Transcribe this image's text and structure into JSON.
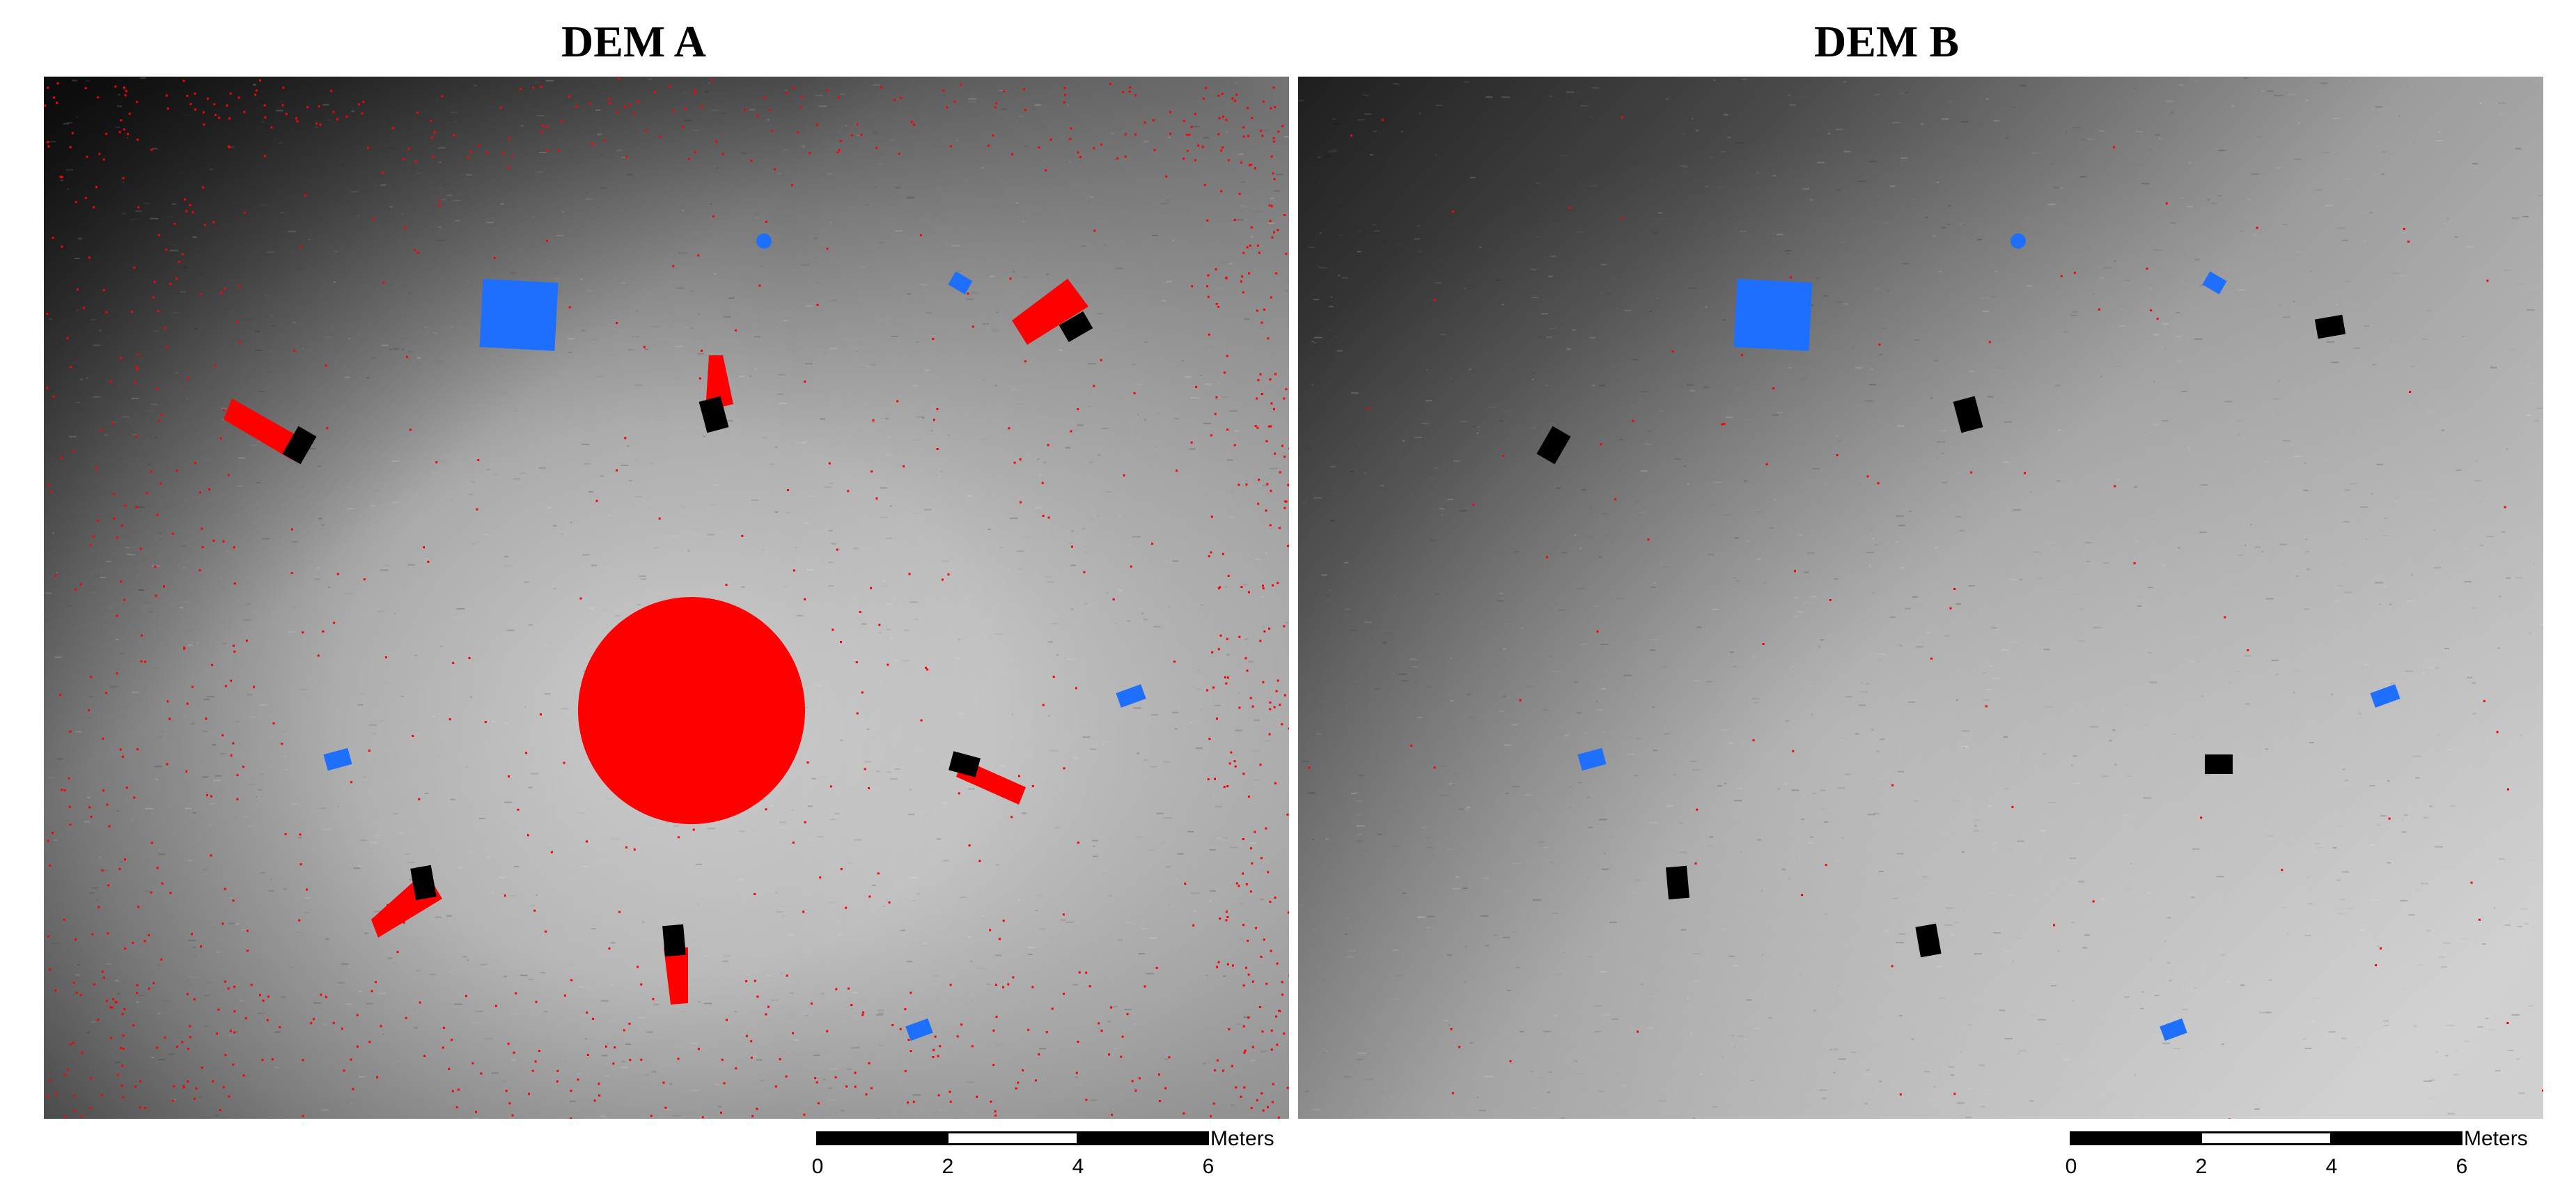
{
  "panels": [
    {
      "id": "a",
      "title": "DEM A",
      "scale_unit": "Meters",
      "scale_ticks": [
        "0",
        "2",
        "4",
        "6"
      ]
    },
    {
      "id": "b",
      "title": "DEM B",
      "scale_unit": "Meters",
      "scale_ticks": [
        "0",
        "2",
        "4",
        "6"
      ]
    }
  ],
  "colors": {
    "error_overlay": "#ff0000",
    "reference_marker": "#1f6fff",
    "object_marker": "#000000",
    "background_dark": "#2a2a2a",
    "background_light": "#dcdcdc"
  },
  "icons": {
    "large_marker_a": "blue-square-icon",
    "small_markers": "blue-marker-icon",
    "object_markers": "black-block-icon",
    "error_blob": "red-circle-icon"
  }
}
